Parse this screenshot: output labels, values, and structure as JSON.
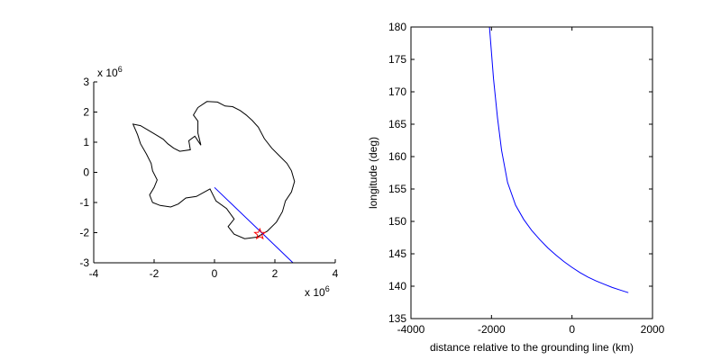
{
  "chart_data": [
    {
      "type": "line",
      "title": "",
      "xlabel": "",
      "ylabel": "",
      "xlim": [
        -4,
        4
      ],
      "ylim": [
        -3,
        3
      ],
      "x_ticks": [
        -4,
        -2,
        0,
        2,
        4
      ],
      "y_ticks": [
        -3,
        -2,
        -1,
        0,
        1,
        2,
        3
      ],
      "x_exponent": {
        "base": "x 10",
        "power": "6"
      },
      "y_exponent": {
        "base": "x 10",
        "power": "6"
      },
      "grid": false,
      "coastline": [
        [
          -0.55,
          2.15
        ],
        [
          -0.25,
          2.35
        ],
        [
          0.1,
          2.33
        ],
        [
          0.35,
          2.2
        ],
        [
          0.6,
          2.18
        ],
        [
          0.85,
          2.05
        ],
        [
          1.05,
          1.9
        ],
        [
          1.25,
          1.72
        ],
        [
          1.45,
          1.5
        ],
        [
          1.65,
          1.12
        ],
        [
          1.9,
          0.8
        ],
        [
          2.15,
          0.55
        ],
        [
          2.4,
          0.3
        ],
        [
          2.55,
          0.05
        ],
        [
          2.65,
          -0.3
        ],
        [
          2.55,
          -0.65
        ],
        [
          2.35,
          -0.95
        ],
        [
          2.25,
          -1.3
        ],
        [
          2.05,
          -1.65
        ],
        [
          1.75,
          -1.95
        ],
        [
          1.4,
          -2.15
        ],
        [
          1.0,
          -2.2
        ],
        [
          0.65,
          -2.05
        ],
        [
          0.45,
          -1.8
        ],
        [
          0.65,
          -1.55
        ],
        [
          0.4,
          -1.2
        ],
        [
          0.05,
          -0.95
        ],
        [
          -0.15,
          -0.55
        ],
        [
          -0.6,
          -0.8
        ],
        [
          -0.95,
          -0.85
        ],
        [
          -1.2,
          -1.05
        ],
        [
          -1.45,
          -1.15
        ],
        [
          -1.8,
          -1.1
        ],
        [
          -2.05,
          -1.0
        ],
        [
          -2.15,
          -0.75
        ],
        [
          -2.0,
          -0.5
        ],
        [
          -1.9,
          -0.25
        ],
        [
          -2.05,
          0.05
        ],
        [
          -2.1,
          0.3
        ],
        [
          -2.25,
          0.6
        ],
        [
          -2.45,
          0.95
        ],
        [
          -2.55,
          1.25
        ],
        [
          -2.7,
          1.6
        ],
        [
          -2.45,
          1.55
        ],
        [
          -2.2,
          1.4
        ],
        [
          -1.95,
          1.25
        ],
        [
          -1.7,
          1.1
        ],
        [
          -1.55,
          0.95
        ],
        [
          -1.35,
          0.8
        ],
        [
          -1.15,
          0.7
        ],
        [
          -0.8,
          0.75
        ],
        [
          -0.85,
          1.05
        ],
        [
          -0.65,
          1.2
        ],
        [
          -0.45,
          0.9
        ],
        [
          -0.55,
          1.3
        ],
        [
          -0.55,
          1.7
        ],
        [
          -0.7,
          1.9
        ],
        [
          -0.55,
          2.15
        ]
      ],
      "series": [
        {
          "values_xy": [
            [
              0.0,
              -0.5
            ],
            [
              2.6,
              -3.0
            ]
          ],
          "color": "#0000ff"
        }
      ],
      "marker": {
        "x": 1.5,
        "y": -2.05,
        "shape": "star",
        "color": "#ff0000"
      }
    },
    {
      "type": "line",
      "title": "",
      "xlabel": "distance relative to the grounding line (km)",
      "ylabel": "longitude (deg)",
      "xlim": [
        -4000,
        2000
      ],
      "ylim": [
        135,
        180
      ],
      "x_ticks": [
        -4000,
        -2000,
        0,
        2000
      ],
      "y_ticks": [
        135,
        140,
        145,
        150,
        155,
        160,
        165,
        170,
        175,
        180
      ],
      "grid": false,
      "series": [
        {
          "color": "#0000ff",
          "x": [
            -2050,
            -1950,
            -1850,
            -1750,
            -1600,
            -1400,
            -1200,
            -1000,
            -800,
            -600,
            -400,
            -200,
            0,
            200,
            400,
            600,
            800,
            1000,
            1200,
            1400
          ],
          "y": [
            180,
            172,
            166,
            161,
            156,
            152.5,
            150.3,
            148.6,
            147.2,
            145.9,
            144.8,
            143.8,
            142.9,
            142.1,
            141.4,
            140.8,
            140.3,
            139.8,
            139.4,
            139.0
          ]
        }
      ]
    }
  ]
}
